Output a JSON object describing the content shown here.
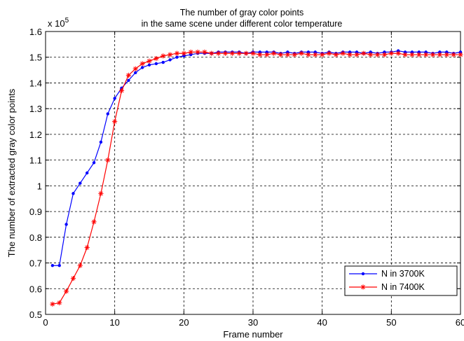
{
  "chart_data": {
    "type": "line",
    "title": [
      "The number of gray color points",
      "in the same scene under different color temperature"
    ],
    "xlabel": "Frame number",
    "ylabel": "The number of extracted gray color points",
    "y_exponent_label": "x 10",
    "y_exponent": "5",
    "xlim": [
      0,
      60
    ],
    "ylim": [
      0.5,
      1.6
    ],
    "xticks": [
      0,
      10,
      20,
      30,
      40,
      50,
      60
    ],
    "yticks": [
      0.5,
      0.6,
      0.7,
      0.8,
      0.9,
      1,
      1.1,
      1.2,
      1.3,
      1.4,
      1.5,
      1.6
    ],
    "grid": true,
    "legend_position": "lower-right",
    "series": [
      {
        "name": "N in 3700K",
        "color": "#0000ff",
        "marker": "dot",
        "x": [
          1,
          2,
          3,
          4,
          5,
          6,
          7,
          8,
          9,
          10,
          11,
          12,
          13,
          14,
          15,
          16,
          17,
          18,
          19,
          20,
          21,
          22,
          23,
          24,
          25,
          26,
          27,
          28,
          29,
          30,
          31,
          32,
          33,
          34,
          35,
          36,
          37,
          38,
          39,
          40,
          41,
          42,
          43,
          44,
          45,
          46,
          47,
          48,
          49,
          50,
          51,
          52,
          53,
          54,
          55,
          56,
          57,
          58,
          59,
          60
        ],
        "y": [
          0.69,
          0.69,
          0.85,
          0.97,
          1.01,
          1.05,
          1.09,
          1.17,
          1.28,
          1.34,
          1.38,
          1.41,
          1.44,
          1.46,
          1.47,
          1.475,
          1.48,
          1.49,
          1.5,
          1.505,
          1.51,
          1.515,
          1.515,
          1.515,
          1.52,
          1.52,
          1.52,
          1.52,
          1.515,
          1.52,
          1.52,
          1.52,
          1.52,
          1.515,
          1.52,
          1.515,
          1.52,
          1.52,
          1.52,
          1.515,
          1.52,
          1.515,
          1.52,
          1.52,
          1.52,
          1.515,
          1.52,
          1.515,
          1.52,
          1.52,
          1.525,
          1.52,
          1.52,
          1.52,
          1.52,
          1.515,
          1.52,
          1.52,
          1.515,
          1.52
        ]
      },
      {
        "name": "N in 7400K",
        "color": "#ff0000",
        "marker": "star",
        "x": [
          1,
          2,
          3,
          4,
          5,
          6,
          7,
          8,
          9,
          10,
          11,
          12,
          13,
          14,
          15,
          16,
          17,
          18,
          19,
          20,
          21,
          22,
          23,
          24,
          25,
          26,
          27,
          28,
          29,
          30,
          31,
          32,
          33,
          34,
          35,
          36,
          37,
          38,
          39,
          40,
          41,
          42,
          43,
          44,
          45,
          46,
          47,
          48,
          49,
          50,
          51,
          52,
          53,
          54,
          55,
          56,
          57,
          58,
          59,
          60
        ],
        "y": [
          0.54,
          0.545,
          0.59,
          0.64,
          0.69,
          0.76,
          0.86,
          0.97,
          1.1,
          1.25,
          1.37,
          1.43,
          1.455,
          1.475,
          1.485,
          1.495,
          1.505,
          1.51,
          1.515,
          1.515,
          1.52,
          1.52,
          1.52,
          1.515,
          1.515,
          1.515,
          1.515,
          1.515,
          1.515,
          1.515,
          1.51,
          1.51,
          1.515,
          1.51,
          1.51,
          1.51,
          1.515,
          1.51,
          1.51,
          1.51,
          1.515,
          1.51,
          1.515,
          1.51,
          1.51,
          1.515,
          1.51,
          1.51,
          1.51,
          1.515,
          1.515,
          1.51,
          1.51,
          1.51,
          1.51,
          1.51,
          1.51,
          1.51,
          1.51,
          1.51
        ]
      }
    ]
  }
}
